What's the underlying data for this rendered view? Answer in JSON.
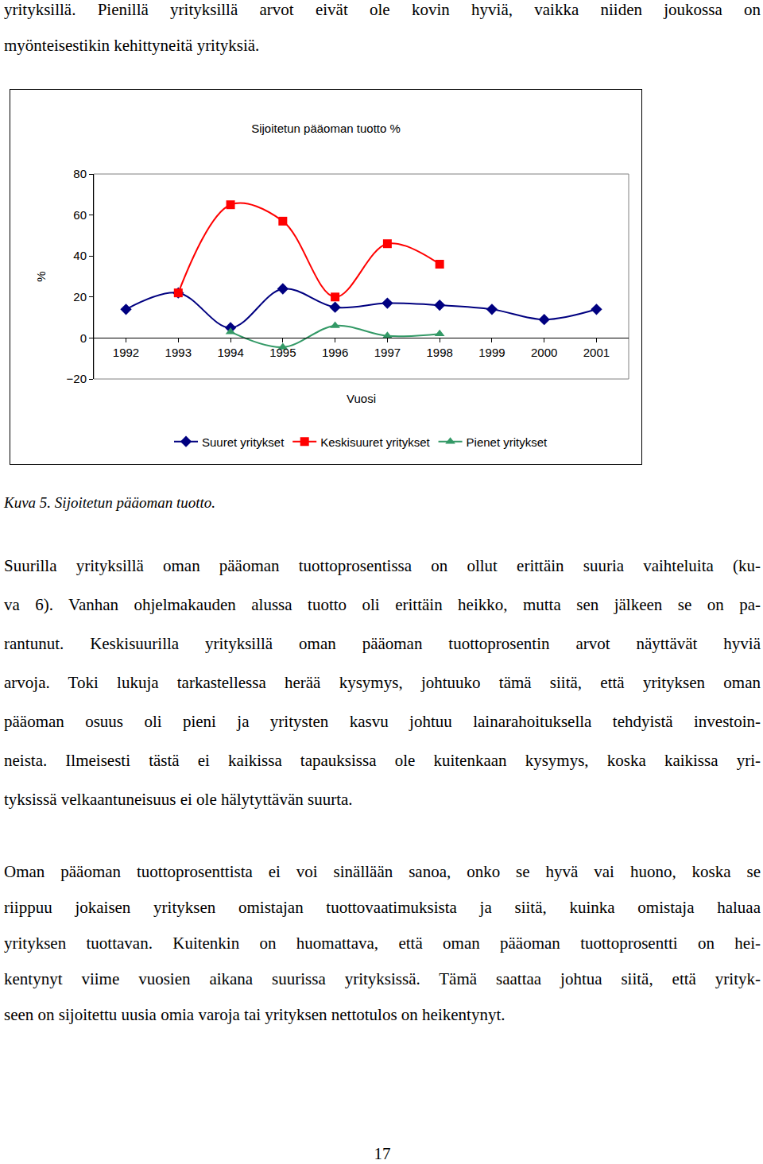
{
  "top_text": [
    "yrityksillä. Pienillä yrityksillä arvot eivät ole kovin hyviä, vaikka niiden joukossa on",
    "myönteisestikin kehittyneitä yrityksiä."
  ],
  "chart_data": {
    "type": "line",
    "title": "Sijoitetun pääoman tuotto %",
    "x_label": "Vuosi",
    "y_label": "%",
    "categories": [
      "1992",
      "1993",
      "1994",
      "1995",
      "1996",
      "1997",
      "1998",
      "1999",
      "2000",
      "2001"
    ],
    "series": [
      {
        "name": "Suuret yritykset",
        "color": "#000080",
        "marker": "diamond",
        "line_style": "smooth",
        "values": [
          14,
          22,
          5,
          24,
          15,
          17,
          16,
          14,
          9,
          14
        ]
      },
      {
        "name": "Keskisuuret yritykset",
        "color": "#ff0000",
        "marker": "square",
        "line_style": "smooth",
        "values": [
          null,
          22,
          65,
          57,
          20,
          46,
          36,
          null,
          null,
          null
        ]
      },
      {
        "name": "Pienet yritykset",
        "color": "#339966",
        "marker": "triangle-up",
        "line_style": "smooth",
        "values": [
          null,
          null,
          3,
          -4.5,
          6,
          1,
          2,
          null,
          null,
          null
        ]
      }
    ],
    "ylim": [
      -20,
      80
    ],
    "yticks": [
      -20,
      0,
      20,
      40,
      60,
      80
    ],
    "grid": false,
    "legend": "bottom"
  },
  "caption": "Kuva 5. Sijoitetun pääoman tuotto.",
  "paragraphs": [
    [
      "Suurilla yrityksillä oman pääoman tuottoprosentissa on ollut erittäin suuria vaihteluita (ku-",
      "va 6). Vanhan ohjelmakauden alussa tuotto oli erittäin heikko, mutta sen jälkeen se on pa-",
      "rantunut. Keskisuurilla yrityksillä oman pääoman tuottoprosentin arvot näyttävät hyviä",
      "arvoja. Toki lukuja tarkastellessa herää kysymys, johtuuko tämä siitä, että yrityksen oman",
      "pääoman osuus oli pieni ja yritysten kasvu johtuu lainarahoituksella tehdyistä investoin-",
      "neista. Ilmeisesti tästä ei kaikissa tapauksissa ole kuitenkaan kysymys, koska kaikissa yri-",
      "tyksissä velkaantuneisuus ei ole hälytyttävän suurta."
    ],
    [
      "Oman pääoman tuottoprosenttista ei voi sinällään sanoa, onko se hyvä vai huono, koska se",
      "riippuu jokaisen yrityksen omistajan tuottovaatimuksista ja siitä, kuinka omistaja haluaa",
      "yrityksen tuottavan. Kuitenkin on huomattava, että oman pääoman tuottoprosentti on hei-",
      "kentynyt viime vuosien aikana suurissa yrityksissä. Tämä saattaa johtua siitä, että yrityk-",
      "seen on sijoitettu uusia omia varoja tai yrityksen nettotulos on heikentynyt."
    ]
  ],
  "page_number": "17"
}
